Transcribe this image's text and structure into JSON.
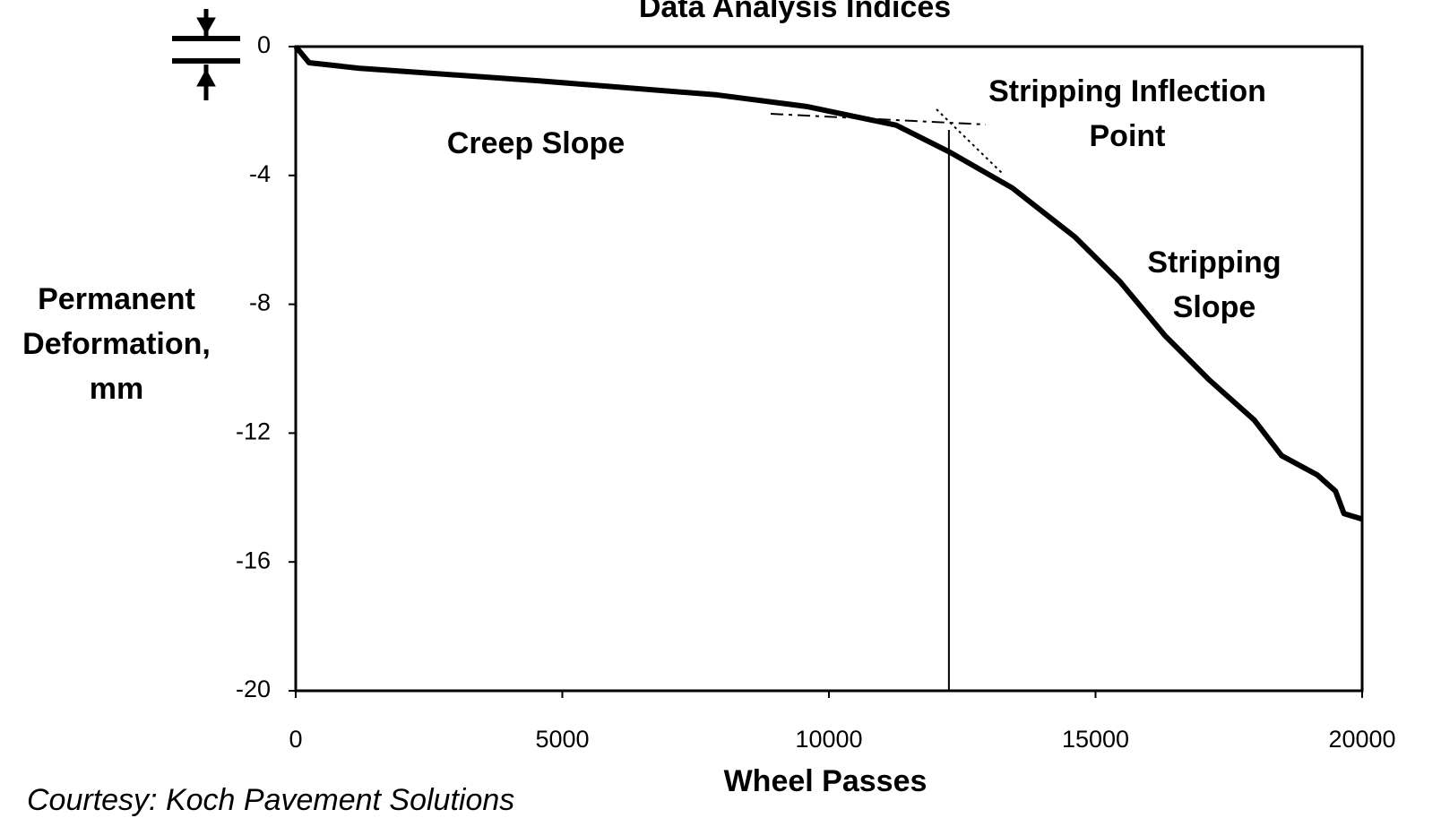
{
  "chart_data": {
    "type": "line",
    "title": "Data Analysis Indices",
    "x_label": "Wheel Passes",
    "y_label": [
      "Permanent",
      "Deformation,",
      "mm"
    ],
    "series": [
      {
        "name": "Permanent Deformation",
        "color": "#000000",
        "x": [
          0,
          250,
          1180,
          4540,
          7900,
          9580,
          11260,
          12270,
          13440,
          14620,
          15460,
          16300,
          17140,
          17980,
          18490,
          19160,
          19500,
          19660,
          20000
        ],
        "values": [
          0,
          -0.5,
          -0.67,
          -1.06,
          -1.5,
          -1.86,
          -2.44,
          -3.28,
          -4.39,
          -5.92,
          -7.3,
          -8.97,
          -10.36,
          -11.6,
          -12.7,
          -13.3,
          -13.8,
          -14.5,
          -14.67
        ]
      }
    ],
    "inflection_point": 12250,
    "annotations": [
      {
        "lines": [
          "Creep Slope"
        ]
      },
      {
        "lines": [
          "Stripping Inflection",
          "Point"
        ]
      },
      {
        "lines": [
          "Stripping",
          "Slope"
        ]
      }
    ],
    "xlim": [
      0,
      20000
    ],
    "xticks": [
      0,
      5000,
      10000,
      15000,
      20000
    ],
    "ylim": [
      -20,
      0
    ],
    "yticks": [
      0,
      -4,
      -8,
      -12,
      -16,
      -20
    ],
    "grid": false,
    "credit": "Courtesy: Koch Pavement Solutions"
  }
}
